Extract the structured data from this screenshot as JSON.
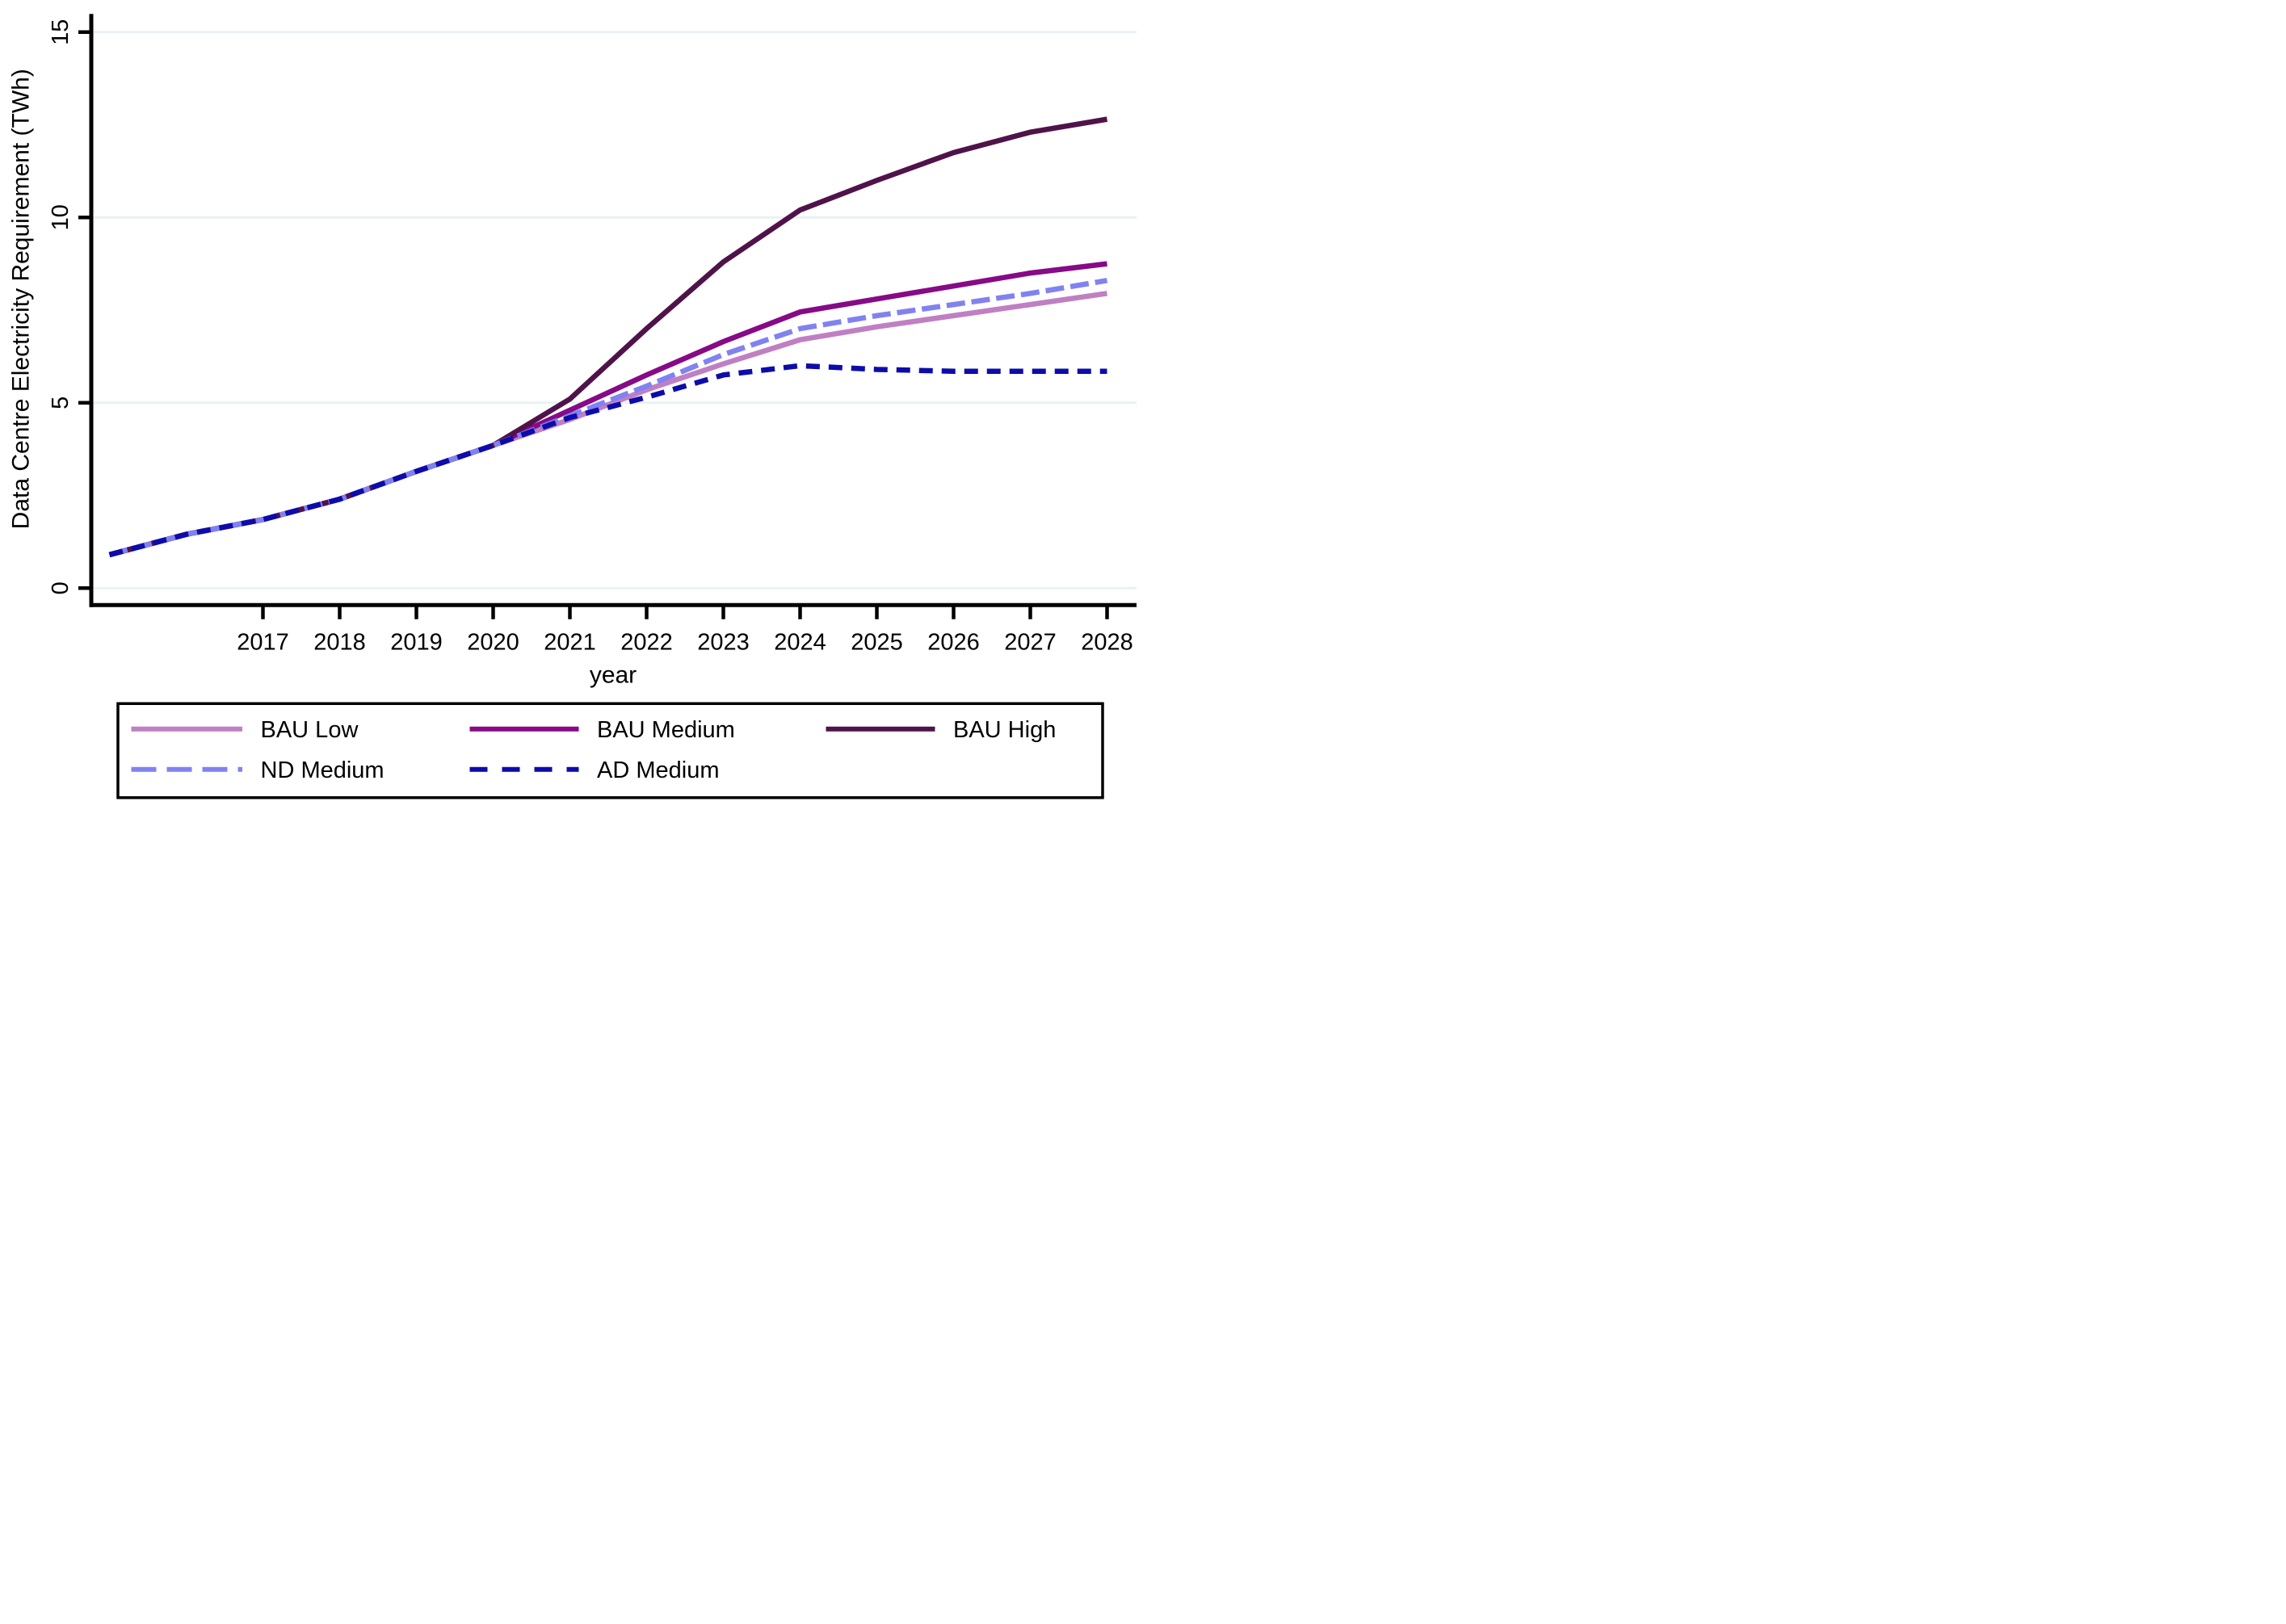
{
  "figure": {
    "background": "#ffffff",
    "axis_color": "#000000",
    "grid_color": "#e9f2f4"
  },
  "chart_data": {
    "type": "line",
    "title": "",
    "xlabel": "year",
    "ylabel": "Data Centre Electricity Requirement (TWh)",
    "grid": "horizontal gridlines at y ticks",
    "legend_position": "bottom box, 2 rows",
    "xlim": [
      2015,
      2028
    ],
    "ylim": [
      0,
      15
    ],
    "x": [
      2015,
      2016,
      2017,
      2018,
      2019,
      2020,
      2021,
      2022,
      2023,
      2024,
      2025,
      2026,
      2027,
      2028
    ],
    "x_tick_years": [
      2017,
      2018,
      2019,
      2020,
      2021,
      2022,
      2023,
      2024,
      2025,
      2026,
      2027,
      2028
    ],
    "x_tick_labels": [
      "2017",
      "2018",
      "2019",
      "2020",
      "2021",
      "2022",
      "2023",
      "2024",
      "2025",
      "2026",
      "2027",
      "2028"
    ],
    "y_tick_values": [
      0,
      5,
      10,
      15
    ],
    "y_tick_labels": [
      "0",
      "5",
      "10",
      "15"
    ],
    "series": [
      {
        "name": "BAU Low",
        "color": "#c07fc3",
        "style": "solid",
        "values": [
          0.9,
          1.45,
          1.85,
          2.4,
          3.15,
          3.85,
          4.55,
          5.35,
          6.05,
          6.7,
          7.05,
          7.35,
          7.65,
          7.95
        ]
      },
      {
        "name": "BAU Medium",
        "color": "#870a87",
        "style": "solid",
        "values": [
          0.9,
          1.45,
          1.85,
          2.4,
          3.15,
          3.85,
          4.8,
          5.75,
          6.65,
          7.45,
          7.8,
          8.15,
          8.5,
          8.75
        ]
      },
      {
        "name": "BAU High",
        "color": "#4f1349",
        "style": "solid",
        "values": [
          0.9,
          1.45,
          1.85,
          2.4,
          3.15,
          3.85,
          5.1,
          7.0,
          8.8,
          10.2,
          11.0,
          11.75,
          12.3,
          12.65
        ]
      },
      {
        "name": "ND Medium",
        "color": "#8182f0",
        "style": "long-dash",
        "values": [
          0.9,
          1.45,
          1.85,
          2.4,
          3.15,
          3.85,
          4.65,
          5.45,
          6.3,
          7.0,
          7.35,
          7.65,
          7.95,
          8.3
        ]
      },
      {
        "name": "AD Medium",
        "color": "#0c0cab",
        "style": "dash",
        "values": [
          0.9,
          1.45,
          1.85,
          2.4,
          3.15,
          3.85,
          4.6,
          5.15,
          5.75,
          6.0,
          5.9,
          5.85,
          5.85,
          5.85
        ]
      }
    ]
  }
}
